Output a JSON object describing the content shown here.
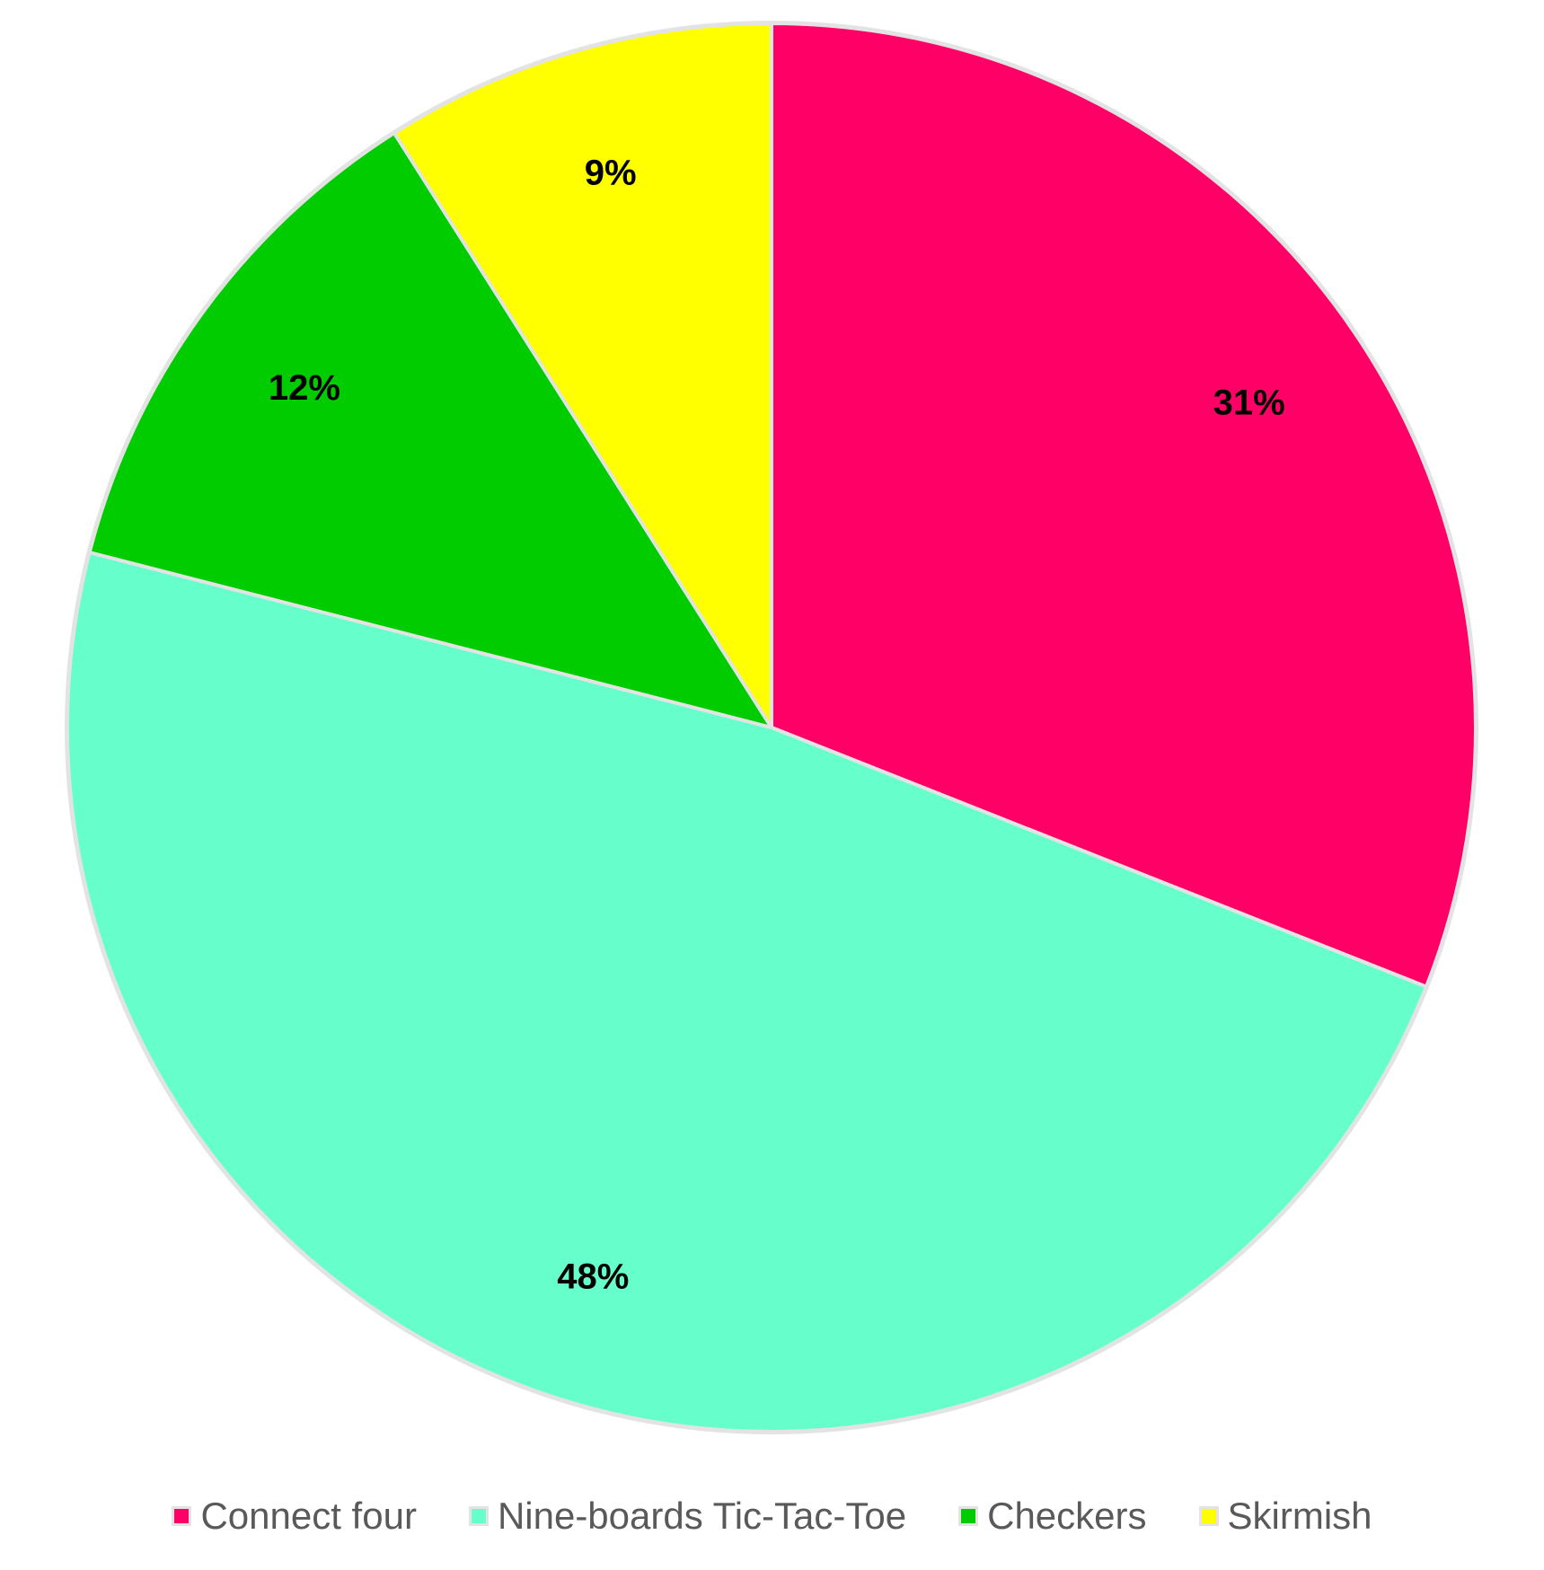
{
  "chart_data": {
    "type": "pie",
    "title": "",
    "categories": [
      "Connect four",
      "Nine-boards Tic-Tac-Toe",
      "Checkers",
      "Skirmish"
    ],
    "values": [
      31,
      48,
      12,
      9
    ],
    "labels": [
      "31%",
      "48%",
      "12%",
      "9%"
    ],
    "colors": [
      "#ff0066",
      "#66ffcc",
      "#00cc00",
      "#ffff00"
    ],
    "slice_border_color": "#e3e3e3",
    "start_angle": "12 o'clock",
    "direction": "clockwise",
    "legend_position": "bottom"
  }
}
